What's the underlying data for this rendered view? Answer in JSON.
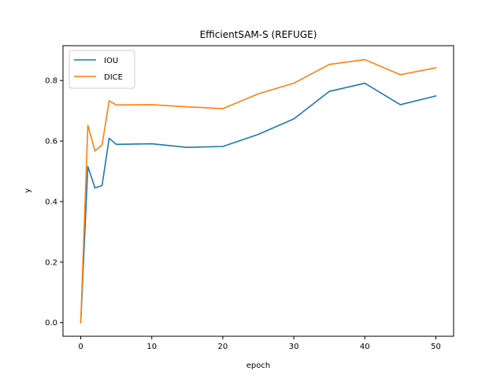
{
  "chart_data": {
    "type": "line",
    "title": "EfficientSAM-S (REFUGE)",
    "xlabel": "epoch",
    "ylabel": "y",
    "xlim": [
      -2.5,
      52.5
    ],
    "ylim": [
      -0.045,
      0.915
    ],
    "xticks": [
      0,
      10,
      20,
      30,
      40,
      50
    ],
    "yticks": [
      0.0,
      0.2,
      0.4,
      0.6,
      0.8
    ],
    "ytick_labels": [
      "0.0",
      "0.2",
      "0.4",
      "0.6",
      "0.8"
    ],
    "grid": false,
    "legend_position": "upper-left",
    "series": [
      {
        "name": "IOU",
        "color": "#1f77b4",
        "x": [
          0,
          1,
          2,
          3,
          4,
          5,
          10,
          15,
          20,
          25,
          30,
          35,
          40,
          45,
          50
        ],
        "y": [
          0.0,
          0.516,
          0.445,
          0.453,
          0.609,
          0.589,
          0.591,
          0.579,
          0.582,
          0.622,
          0.673,
          0.764,
          0.791,
          0.72,
          0.749
        ]
      },
      {
        "name": "DICE",
        "color": "#ff7f0e",
        "x": [
          0,
          1,
          2,
          3,
          4,
          5,
          10,
          15,
          20,
          25,
          30,
          35,
          40,
          45,
          50
        ],
        "y": [
          0.0,
          0.652,
          0.567,
          0.587,
          0.733,
          0.719,
          0.72,
          0.713,
          0.707,
          0.756,
          0.791,
          0.853,
          0.869,
          0.819,
          0.842
        ]
      }
    ]
  }
}
